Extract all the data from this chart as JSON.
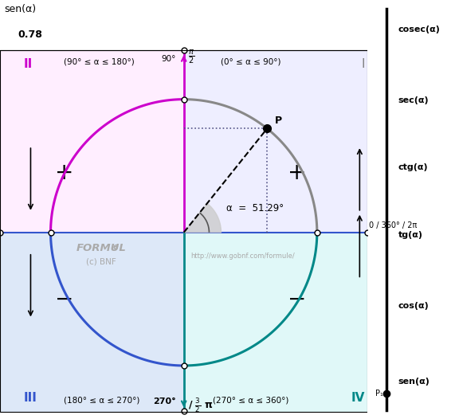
{
  "title_sen": "sen(α)",
  "value_sen": "0.78",
  "alpha_deg": 51.29,
  "color_q1_arc": "#888888",
  "color_q2_arc": "#cc00cc",
  "color_q3_arc": "#3355cc",
  "color_q4_arc": "#008888",
  "color_q1_bg": "#eeeeff",
  "color_q2_bg": "#ffeeff",
  "color_q3_bg": "#dde8f8",
  "color_q4_bg": "#e0f8f8",
  "color_yaxis_top": "#cc00cc",
  "color_yaxis_bottom": "#008888",
  "color_xaxis": "#3355cc",
  "right_axis_labels": [
    "cosec(α)",
    "sec(α)",
    "ctg(α)",
    "tg(α)",
    "cos(α)",
    "sen(α)"
  ],
  "watermark1": "FORMUL",
  "watermark1e": "e",
  "watermark2": "(c) BNF",
  "watermark3": "http://www.gobnf.com/formule/",
  "point_label": "P",
  "point1_label": "P₁",
  "angle_label": "α  =  51.29°",
  "label_II": "II",
  "label_III": "III",
  "label_I": "I",
  "label_IV": "IV",
  "range_II": "(90° ≤ α ≤ 180°)",
  "range_III": "(180° ≤ α ≤ 270°)",
  "range_I": "(0° ≤ α ≤ 90°)",
  "range_IV": "(270° ≤ α ≤ 360°)"
}
